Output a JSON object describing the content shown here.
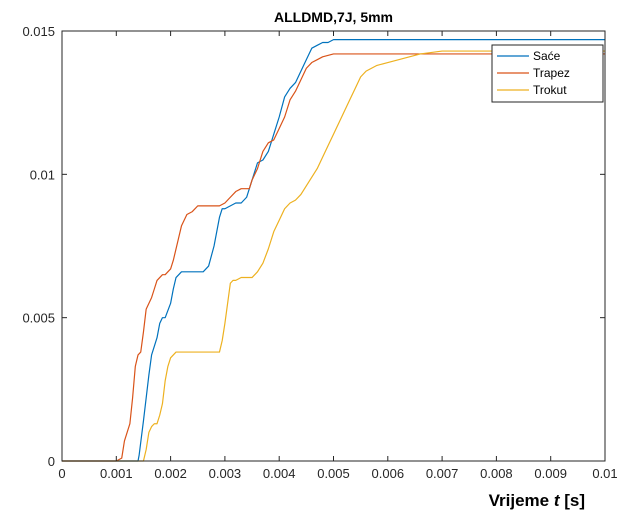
{
  "chart_data": {
    "type": "line",
    "title": "ALLDMD,7J, 5mm",
    "xlabel_prefix": "Vrijeme ",
    "xlabel_var": "t",
    "xlabel_suffix": " [s]",
    "ylabel": "",
    "xlim": [
      0,
      0.01
    ],
    "ylim": [
      0,
      0.015
    ],
    "xticks": [
      0,
      0.001,
      0.002,
      0.003,
      0.004,
      0.005,
      0.006,
      0.007,
      0.008,
      0.009,
      0.01
    ],
    "xtick_labels": [
      "0",
      "0.001",
      "0.002",
      "0.003",
      "0.004",
      "0.005",
      "0.006",
      "0.007",
      "0.008",
      "0.009",
      "0.01"
    ],
    "yticks": [
      0,
      0.005,
      0.01,
      0.015
    ],
    "ytick_labels": [
      "0",
      "0.005",
      "0.01",
      "0.015"
    ],
    "grid": false,
    "legend_position": "top-right",
    "series": [
      {
        "name": "Saće",
        "color": "#0072BD",
        "x": [
          0,
          0.0014,
          0.00142,
          0.00146,
          0.0015,
          0.00155,
          0.0016,
          0.00165,
          0.0017,
          0.00175,
          0.0018,
          0.00185,
          0.0019,
          0.002,
          0.00205,
          0.0021,
          0.00215,
          0.0022,
          0.0023,
          0.0024,
          0.0025,
          0.0026,
          0.0027,
          0.0028,
          0.00285,
          0.0029,
          0.00295,
          0.003,
          0.0031,
          0.0032,
          0.0033,
          0.0034,
          0.0035,
          0.0036,
          0.0037,
          0.0038,
          0.0039,
          0.004,
          0.0041,
          0.0042,
          0.0043,
          0.0044,
          0.0045,
          0.0046,
          0.0047,
          0.0048,
          0.0049,
          0.005,
          0.0051,
          0.0052,
          0.006,
          0.007,
          0.008,
          0.009,
          0.01
        ],
        "y": [
          0,
          0,
          0.0002,
          0.0008,
          0.0014,
          0.0022,
          0.003,
          0.0037,
          0.004,
          0.0043,
          0.0048,
          0.005,
          0.005,
          0.0055,
          0.006,
          0.0064,
          0.0065,
          0.0066,
          0.0066,
          0.0066,
          0.0066,
          0.0066,
          0.0068,
          0.0075,
          0.008,
          0.0085,
          0.0088,
          0.0088,
          0.0089,
          0.009,
          0.009,
          0.0092,
          0.0098,
          0.0104,
          0.0105,
          0.0108,
          0.0114,
          0.012,
          0.0127,
          0.013,
          0.0132,
          0.0136,
          0.014,
          0.0144,
          0.0145,
          0.0146,
          0.0146,
          0.0147,
          0.0147,
          0.0147,
          0.0147,
          0.0147,
          0.0147,
          0.0147,
          0.0147
        ]
      },
      {
        "name": "Trapez",
        "color": "#D95319",
        "x": [
          0,
          0.001,
          0.0011,
          0.00115,
          0.0012,
          0.00125,
          0.0013,
          0.00135,
          0.0014,
          0.00145,
          0.0015,
          0.00155,
          0.0016,
          0.00165,
          0.0017,
          0.00175,
          0.0018,
          0.00185,
          0.0019,
          0.00195,
          0.002,
          0.00205,
          0.0021,
          0.00215,
          0.0022,
          0.0023,
          0.0024,
          0.0025,
          0.0026,
          0.0027,
          0.0028,
          0.0029,
          0.003,
          0.0031,
          0.0032,
          0.0033,
          0.0034,
          0.00345,
          0.0035,
          0.0036,
          0.0037,
          0.0038,
          0.0039,
          0.004,
          0.0041,
          0.0042,
          0.0043,
          0.0044,
          0.0045,
          0.0046,
          0.0047,
          0.0048,
          0.005,
          0.006,
          0.007,
          0.008,
          0.009,
          0.01
        ],
        "y": [
          0,
          0,
          0.0001,
          0.0007,
          0.001,
          0.0013,
          0.0022,
          0.0033,
          0.0037,
          0.0038,
          0.0045,
          0.0053,
          0.0055,
          0.0057,
          0.006,
          0.0063,
          0.0064,
          0.0065,
          0.0065,
          0.0066,
          0.0067,
          0.007,
          0.0074,
          0.0078,
          0.0082,
          0.0086,
          0.0087,
          0.0089,
          0.0089,
          0.0089,
          0.0089,
          0.0089,
          0.009,
          0.0092,
          0.0094,
          0.0095,
          0.0095,
          0.0095,
          0.0098,
          0.0102,
          0.0108,
          0.0111,
          0.0112,
          0.0116,
          0.012,
          0.0126,
          0.0129,
          0.0133,
          0.0137,
          0.0139,
          0.014,
          0.0141,
          0.0142,
          0.0142,
          0.0142,
          0.0142,
          0.0142,
          0.0142
        ]
      },
      {
        "name": "Trokut",
        "color": "#EDB120",
        "x": [
          0,
          0.0015,
          0.00155,
          0.0016,
          0.00165,
          0.0017,
          0.00175,
          0.0018,
          0.00185,
          0.0019,
          0.00195,
          0.002,
          0.0021,
          0.0022,
          0.0023,
          0.0024,
          0.0025,
          0.0026,
          0.0027,
          0.0028,
          0.0029,
          0.00295,
          0.003,
          0.00305,
          0.0031,
          0.00315,
          0.0032,
          0.0033,
          0.0034,
          0.0035,
          0.0036,
          0.0037,
          0.0038,
          0.0039,
          0.004,
          0.0041,
          0.0042,
          0.0043,
          0.0044,
          0.0045,
          0.0046,
          0.0047,
          0.0048,
          0.0049,
          0.005,
          0.0051,
          0.0052,
          0.0053,
          0.0054,
          0.0055,
          0.0056,
          0.0057,
          0.0058,
          0.006,
          0.0062,
          0.0064,
          0.0066,
          0.007,
          0.008,
          0.009,
          0.01
        ],
        "y": [
          0,
          0,
          0.0004,
          0.001,
          0.0012,
          0.0013,
          0.0013,
          0.0016,
          0.002,
          0.0028,
          0.0033,
          0.0036,
          0.0038,
          0.0038,
          0.0038,
          0.0038,
          0.0038,
          0.0038,
          0.0038,
          0.0038,
          0.0038,
          0.0042,
          0.0048,
          0.0055,
          0.0062,
          0.0063,
          0.0063,
          0.0064,
          0.0064,
          0.0064,
          0.0066,
          0.0069,
          0.0074,
          0.008,
          0.0084,
          0.0088,
          0.009,
          0.0091,
          0.0093,
          0.0096,
          0.0099,
          0.0102,
          0.0106,
          0.011,
          0.0114,
          0.0118,
          0.0122,
          0.0126,
          0.013,
          0.0134,
          0.0136,
          0.0137,
          0.0138,
          0.0139,
          0.014,
          0.0141,
          0.0142,
          0.0143,
          0.0143,
          0.0143,
          0.0143
        ]
      }
    ]
  }
}
